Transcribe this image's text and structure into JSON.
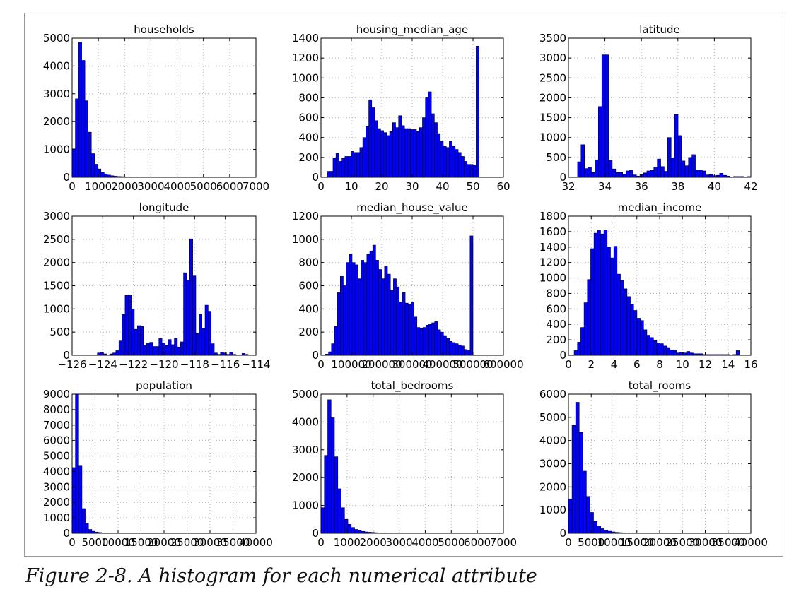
{
  "figure": {
    "caption": "Figure 2-8. A histogram for each numerical attribute"
  },
  "colors": {
    "bar_fill": "#0000ff",
    "bar_edge": "#000000",
    "grid": "#b0b0b0",
    "frame": "#9a9a9a"
  },
  "chart_data": [
    {
      "type": "bar",
      "title": "households",
      "xlim": [
        0,
        7000
      ],
      "ylim": [
        0,
        5000
      ],
      "grid": true,
      "x_ticks": [
        0,
        1000,
        2000,
        3000,
        4000,
        5000,
        6000,
        7000
      ],
      "x_tick_labels": [
        "0",
        "1000",
        "2000",
        "3000",
        "4000",
        "5000",
        "6000",
        "7000"
      ],
      "y_ticks": [
        0,
        1000,
        2000,
        3000,
        4000,
        5000
      ],
      "y_tick_labels": [
        "0",
        "1000",
        "2000",
        "3000",
        "4000",
        "5000"
      ],
      "bin_range": [
        0,
        6100
      ],
      "values": [
        1020,
        2820,
        4850,
        4200,
        2750,
        1620,
        850,
        470,
        300,
        180,
        120,
        80,
        55,
        40,
        30,
        25,
        18,
        14,
        10,
        8,
        6,
        5,
        4,
        3,
        3,
        2,
        2,
        2,
        1,
        1,
        1,
        1,
        1,
        1,
        1,
        1,
        1,
        1,
        1,
        1,
        0,
        0,
        0,
        0,
        0,
        0,
        0,
        0,
        0,
        1
      ]
    },
    {
      "type": "bar",
      "title": "housing_median_age",
      "xlim": [
        0,
        60
      ],
      "ylim": [
        0,
        1400
      ],
      "grid": true,
      "x_ticks": [
        0,
        10,
        20,
        30,
        40,
        50,
        60
      ],
      "x_tick_labels": [
        "0",
        "10",
        "20",
        "30",
        "40",
        "50",
        "60"
      ],
      "y_ticks": [
        0,
        200,
        400,
        600,
        800,
        1000,
        1200,
        1400
      ],
      "y_tick_labels": [
        "0",
        "200",
        "400",
        "600",
        "800",
        "1000",
        "1200",
        "1400"
      ],
      "bin_range": [
        1,
        52
      ],
      "values": [
        4,
        60,
        60,
        190,
        240,
        160,
        190,
        210,
        210,
        260,
        250,
        250,
        300,
        400,
        510,
        780,
        700,
        570,
        490,
        470,
        450,
        420,
        460,
        550,
        500,
        620,
        520,
        490,
        490,
        480,
        480,
        460,
        500,
        600,
        800,
        860,
        640,
        550,
        440,
        360,
        310,
        300,
        360,
        310,
        280,
        250,
        210,
        160,
        130,
        130,
        120,
        1320
      ]
    },
    {
      "type": "bar",
      "title": "latitude",
      "xlim": [
        32,
        42
      ],
      "ylim": [
        0,
        3500
      ],
      "grid": true,
      "x_ticks": [
        32,
        34,
        36,
        38,
        40,
        42
      ],
      "x_tick_labels": [
        "32",
        "34",
        "36",
        "38",
        "40",
        "42"
      ],
      "y_ticks": [
        0,
        500,
        1000,
        1500,
        2000,
        2500,
        3000,
        3500
      ],
      "y_tick_labels": [
        "0",
        "500",
        "1000",
        "1500",
        "2000",
        "2500",
        "3000",
        "3500"
      ],
      "bin_range": [
        32.5,
        42.0
      ],
      "values": [
        390,
        820,
        220,
        250,
        120,
        440,
        1780,
        3080,
        3080,
        430,
        210,
        120,
        120,
        80,
        160,
        180,
        60,
        30,
        70,
        110,
        160,
        180,
        260,
        460,
        270,
        150,
        1000,
        480,
        1580,
        1050,
        410,
        290,
        500,
        570,
        180,
        190,
        160,
        60,
        70,
        40,
        50,
        100,
        50,
        30,
        10,
        20,
        20,
        20,
        10,
        20
      ]
    },
    {
      "type": "bar",
      "title": "longitude",
      "xlim": [
        -126,
        -114
      ],
      "ylim": [
        0,
        3000
      ],
      "grid": true,
      "x_ticks": [
        -126,
        -124,
        -122,
        -120,
        -118,
        -116,
        -114
      ],
      "x_tick_labels": [
        "−126",
        "−124",
        "−122",
        "−120",
        "−118",
        "−116",
        "−114"
      ],
      "y_ticks": [
        0,
        500,
        1000,
        1500,
        2000,
        2500,
        3000
      ],
      "y_tick_labels": [
        "0",
        "500",
        "1000",
        "1500",
        "2000",
        "2500",
        "3000"
      ],
      "bin_range": [
        -124.35,
        -114.31
      ],
      "values": [
        50,
        70,
        30,
        10,
        30,
        50,
        100,
        310,
        880,
        1290,
        1300,
        1000,
        560,
        640,
        620,
        220,
        260,
        280,
        190,
        190,
        360,
        270,
        210,
        340,
        230,
        360,
        180,
        290,
        1780,
        1620,
        2510,
        1710,
        470,
        880,
        580,
        1080,
        950,
        250,
        50,
        20,
        70,
        50,
        20,
        70,
        20,
        10,
        10,
        40,
        20,
        10
      ]
    },
    {
      "type": "bar",
      "title": "median_house_value",
      "xlim": [
        0,
        600000
      ],
      "ylim": [
        0,
        1200
      ],
      "grid": true,
      "x_ticks": [
        0,
        100000,
        200000,
        300000,
        400000,
        500000,
        600000
      ],
      "x_tick_labels": [
        "0",
        "100000",
        "200000",
        "300000",
        "400000",
        "500000",
        "600000"
      ],
      "y_ticks": [
        0,
        200,
        400,
        600,
        800,
        1000,
        1200
      ],
      "y_tick_labels": [
        "0",
        "200",
        "400",
        "600",
        "800",
        "1000",
        "1200"
      ],
      "bin_range": [
        14999,
        500001
      ],
      "values": [
        10,
        30,
        100,
        250,
        540,
        680,
        600,
        800,
        870,
        800,
        780,
        660,
        820,
        800,
        870,
        900,
        950,
        820,
        740,
        660,
        770,
        700,
        560,
        660,
        590,
        460,
        540,
        450,
        440,
        460,
        330,
        240,
        230,
        240,
        260,
        270,
        280,
        290,
        220,
        200,
        170,
        150,
        120,
        110,
        100,
        90,
        80,
        50,
        40,
        1030
      ]
    },
    {
      "type": "bar",
      "title": "median_income",
      "xlim": [
        0,
        16
      ],
      "ylim": [
        0,
        1800
      ],
      "grid": true,
      "x_ticks": [
        0,
        2,
        4,
        6,
        8,
        10,
        12,
        14,
        16
      ],
      "x_tick_labels": [
        "0",
        "2",
        "4",
        "6",
        "8",
        "10",
        "12",
        "14",
        "16"
      ],
      "y_ticks": [
        0,
        200,
        400,
        600,
        800,
        1000,
        1200,
        1400,
        1600,
        1800
      ],
      "y_tick_labels": [
        "0",
        "200",
        "400",
        "600",
        "800",
        "1000",
        "1200",
        "1400",
        "1600",
        "1800"
      ],
      "bin_range": [
        0.5,
        15.0
      ],
      "values": [
        60,
        170,
        360,
        680,
        980,
        1380,
        1580,
        1620,
        1570,
        1620,
        1400,
        1260,
        1410,
        1050,
        970,
        860,
        760,
        660,
        580,
        480,
        450,
        330,
        260,
        230,
        190,
        160,
        150,
        120,
        100,
        70,
        60,
        30,
        40,
        30,
        50,
        30,
        20,
        20,
        20,
        10,
        10,
        10,
        10,
        10,
        10,
        10,
        10,
        0,
        10,
        60
      ]
    },
    {
      "type": "bar",
      "title": "population",
      "xlim": [
        0,
        40000
      ],
      "ylim": [
        0,
        9000
      ],
      "grid": true,
      "x_ticks": [
        0,
        5000,
        10000,
        15000,
        20000,
        25000,
        30000,
        35000,
        40000
      ],
      "x_tick_labels": [
        "0",
        "5000",
        "10000",
        "15000",
        "20000",
        "25000",
        "30000",
        "35000",
        "40000"
      ],
      "y_ticks": [
        0,
        1000,
        2000,
        3000,
        4000,
        5000,
        6000,
        7000,
        8000,
        9000
      ],
      "y_tick_labels": [
        "0",
        "1000",
        "2000",
        "3000",
        "4000",
        "5000",
        "6000",
        "7000",
        "8000",
        "9000"
      ],
      "bin_range": [
        0,
        35700
      ],
      "values": [
        4250,
        9000,
        4350,
        1600,
        650,
        250,
        130,
        80,
        50,
        30,
        20,
        15,
        10,
        8,
        6,
        5,
        4,
        3,
        3,
        2,
        2,
        2,
        1,
        1,
        1,
        1,
        1,
        1,
        1,
        1,
        1,
        1,
        0,
        0,
        0,
        0,
        0,
        0,
        0,
        0,
        0,
        0,
        0,
        0,
        0,
        0,
        0,
        0,
        0,
        1
      ]
    },
    {
      "type": "bar",
      "title": "total_bedrooms",
      "xlim": [
        0,
        7000
      ],
      "ylim": [
        0,
        5000
      ],
      "grid": true,
      "x_ticks": [
        0,
        1000,
        2000,
        3000,
        4000,
        5000,
        6000,
        7000
      ],
      "x_tick_labels": [
        "0",
        "1000",
        "2000",
        "3000",
        "4000",
        "5000",
        "6000",
        "7000"
      ],
      "y_ticks": [
        0,
        1000,
        2000,
        3000,
        4000,
        5000
      ],
      "y_tick_labels": [
        "0",
        "1000",
        "2000",
        "3000",
        "4000",
        "5000"
      ],
      "bin_range": [
        0,
        6450
      ],
      "values": [
        920,
        2800,
        4800,
        4150,
        2750,
        1600,
        920,
        500,
        320,
        210,
        140,
        100,
        70,
        50,
        40,
        30,
        22,
        17,
        12,
        10,
        8,
        6,
        5,
        4,
        3,
        3,
        2,
        2,
        2,
        1,
        1,
        1,
        1,
        1,
        1,
        1,
        1,
        1,
        1,
        1,
        1,
        0,
        0,
        0,
        0,
        0,
        0,
        0,
        0,
        1
      ]
    },
    {
      "type": "bar",
      "title": "total_rooms",
      "xlim": [
        0,
        40000
      ],
      "ylim": [
        0,
        6000
      ],
      "grid": true,
      "x_ticks": [
        0,
        5000,
        10000,
        15000,
        20000,
        25000,
        30000,
        35000,
        40000
      ],
      "x_tick_labels": [
        "0",
        "5000",
        "10000",
        "15000",
        "20000",
        "25000",
        "30000",
        "35000",
        "40000"
      ],
      "y_ticks": [
        0,
        1000,
        2000,
        3000,
        4000,
        5000,
        6000
      ],
      "y_tick_labels": [
        "0",
        "1000",
        "2000",
        "3000",
        "4000",
        "5000",
        "6000"
      ],
      "bin_range": [
        0,
        39320
      ],
      "values": [
        1480,
        4650,
        5650,
        4350,
        2680,
        1590,
        900,
        510,
        320,
        200,
        130,
        90,
        60,
        40,
        30,
        22,
        16,
        12,
        9,
        7,
        5,
        4,
        3,
        3,
        2,
        2,
        1,
        1,
        1,
        1,
        1,
        1,
        1,
        1,
        1,
        1,
        1,
        1,
        0,
        0,
        0,
        0,
        0,
        0,
        0,
        0,
        0,
        0,
        0,
        1
      ]
    }
  ]
}
